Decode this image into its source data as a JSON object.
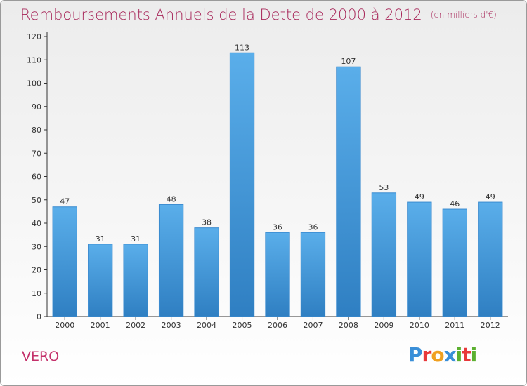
{
  "header": {
    "title": "Remboursements Annuels de la Dette de 2000 à 2012",
    "unit": "(en milliers d'€)"
  },
  "commune": "VERO",
  "logo": {
    "text": "Proxiti",
    "letters": [
      "P",
      "r",
      "o",
      "x",
      "i",
      "t",
      "i"
    ],
    "colors": [
      "#3a8fd8",
      "#e8383a",
      "#f0a020",
      "#3a8fd8",
      "#5cb030",
      "#e8383a",
      "#5cb030"
    ]
  },
  "colors": {
    "bar": "#5aaeea",
    "bar_dark": "#2f7fc2",
    "title": "#a8285a"
  },
  "chart_data": {
    "type": "bar",
    "title": "Remboursements Annuels de la Dette de 2000 à 2012",
    "unit": "(en milliers d'€)",
    "categories": [
      "2000",
      "2001",
      "2002",
      "2003",
      "2004",
      "2005",
      "2006",
      "2007",
      "2008",
      "2009",
      "2010",
      "2011",
      "2012"
    ],
    "values": [
      47,
      31,
      31,
      48,
      38,
      113,
      36,
      36,
      107,
      53,
      49,
      46,
      49
    ],
    "ylim": [
      0,
      120
    ],
    "yticks": [
      0,
      10,
      20,
      30,
      40,
      50,
      60,
      70,
      80,
      90,
      100,
      110,
      120
    ],
    "grid": false,
    "xlabel": "",
    "ylabel": ""
  }
}
